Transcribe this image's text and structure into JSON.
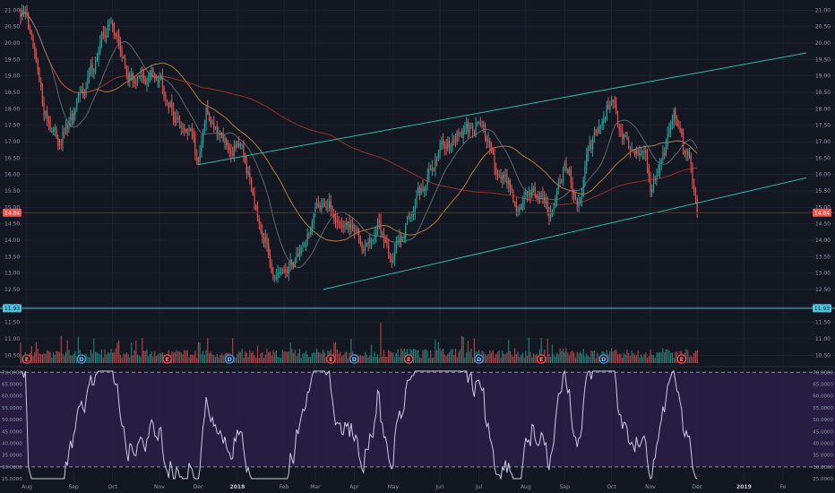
{
  "chart_data": [
    {
      "type": "candlestick",
      "title": "",
      "y_ticks": [
        "21.00",
        "20.50",
        "20.00",
        "19.50",
        "19.00",
        "18.50",
        "18.00",
        "17.50",
        "17.00",
        "16.50",
        "16.00",
        "15.50",
        "15.00",
        "14.50",
        "14.00",
        "13.50",
        "13.00",
        "12.50",
        "12.00",
        "11.50",
        "11.00",
        "10.50"
      ],
      "ylim": [
        10.4,
        21.2
      ],
      "last_price_label": "14.84",
      "last_price": 14.84,
      "secondary_price_label": "11.93",
      "secondary_price": 11.93,
      "x_ticks": [
        "Aug",
        "Sep",
        "Oct",
        "Nov",
        "Dec",
        "2018",
        "Feb",
        "Mar",
        "Apr",
        "May",
        "Jun",
        "Jul",
        "Aug",
        "Sep",
        "Oct",
        "Nov",
        "Dec",
        "2019",
        "Fe"
      ],
      "x_tick_weeks": [
        0,
        6,
        11,
        17,
        22,
        27,
        33,
        37,
        42,
        47,
        53,
        58,
        64,
        69,
        75,
        80,
        86,
        92,
        97
      ],
      "weeks_shown": 100,
      "first_bar_week": -0.8,
      "bars_per_week": 5,
      "anchors": [
        [
          0,
          20.8
        ],
        [
          2,
          18.1
        ],
        [
          4,
          17.0
        ],
        [
          6,
          17.7
        ],
        [
          8,
          19.0
        ],
        [
          10,
          20.3
        ],
        [
          11,
          20.6
        ],
        [
          13,
          19.0
        ],
        [
          15,
          18.8
        ],
        [
          17,
          19.2
        ],
        [
          19,
          17.7
        ],
        [
          21,
          17.3
        ],
        [
          22,
          16.2
        ],
        [
          23,
          17.8
        ],
        [
          25,
          17.3
        ],
        [
          26,
          16.6
        ],
        [
          27,
          17.1
        ],
        [
          29,
          15.5
        ],
        [
          31,
          13.7
        ],
        [
          32,
          12.7
        ],
        [
          34,
          13.2
        ],
        [
          36,
          14.2
        ],
        [
          38,
          15.3
        ],
        [
          40,
          14.6
        ],
        [
          42,
          14.2
        ],
        [
          44,
          13.9
        ],
        [
          45,
          14.4
        ],
        [
          47,
          13.5
        ],
        [
          49,
          14.8
        ],
        [
          51,
          15.7
        ],
        [
          53,
          16.8
        ],
        [
          55,
          17.2
        ],
        [
          57,
          17.3
        ],
        [
          58,
          17.7
        ],
        [
          60,
          16.3
        ],
        [
          62,
          15.7
        ],
        [
          63,
          14.9
        ],
        [
          65,
          15.6
        ],
        [
          67,
          14.8
        ],
        [
          69,
          16.4
        ],
        [
          71,
          15.0
        ],
        [
          72,
          16.6
        ],
        [
          74,
          17.7
        ],
        [
          75,
          18.4
        ],
        [
          76,
          17.3
        ],
        [
          78,
          16.6
        ],
        [
          79,
          17.0
        ],
        [
          80,
          15.6
        ],
        [
          82,
          16.8
        ],
        [
          83,
          18.1
        ],
        [
          84,
          16.9
        ],
        [
          85,
          16.3
        ],
        [
          86,
          14.84
        ]
      ],
      "moving_averages": [
        {
          "color": "#e8a23c",
          "period": 50
        },
        {
          "color": "#c0392b",
          "period": 200
        },
        {
          "color": "#7b7f89",
          "period": 20
        }
      ],
      "channel_lines": [
        {
          "from": [
            38,
            12.5
          ],
          "to": [
            100,
            15.9
          ]
        },
        {
          "from": [
            22,
            16.3
          ],
          "to": [
            100,
            19.7
          ]
        }
      ],
      "volume": {
        "colors_follow_price": true
      },
      "events": [
        {
          "week": 0,
          "label": "E",
          "kind": "earnings"
        },
        {
          "week": 7,
          "label": "D",
          "kind": "dividend"
        },
        {
          "week": 18,
          "label": "E",
          "kind": "earnings"
        },
        {
          "week": 26,
          "label": "D",
          "kind": "dividend"
        },
        {
          "week": 39,
          "label": "E",
          "kind": "earnings"
        },
        {
          "week": 42,
          "label": "D",
          "kind": "dividend"
        },
        {
          "week": 49,
          "label": "E",
          "kind": "earnings"
        },
        {
          "week": 58,
          "label": "D",
          "kind": "dividend"
        },
        {
          "week": 66,
          "label": "E",
          "kind": "earnings"
        },
        {
          "week": 74,
          "label": "D",
          "kind": "dividend"
        },
        {
          "week": 84,
          "label": "E",
          "kind": "earnings"
        }
      ]
    },
    {
      "type": "line",
      "indicator": "oscillator",
      "y_ticks": [
        "70.0000",
        "65.0000",
        "60.0000",
        "55.0000",
        "50.0000",
        "45.0000",
        "40.0000",
        "35.0000",
        "30.0000",
        "25.0000"
      ],
      "ylim": [
        23.5,
        72
      ],
      "bands": [
        30,
        70
      ],
      "values_source": "derived from price closes (14-period)"
    }
  ],
  "colors": {
    "background": "#131722",
    "grid": "#1e2230",
    "up": "#26a69a",
    "down": "#ef5350",
    "channel": "#31b7a8",
    "oscillator_line": "#cfc7e3",
    "oscillator_fill": "#2b1f48",
    "axis_text": "#8d93a3",
    "price_badge": "#ef5350",
    "secondary_badge": "#4fc3dd"
  }
}
